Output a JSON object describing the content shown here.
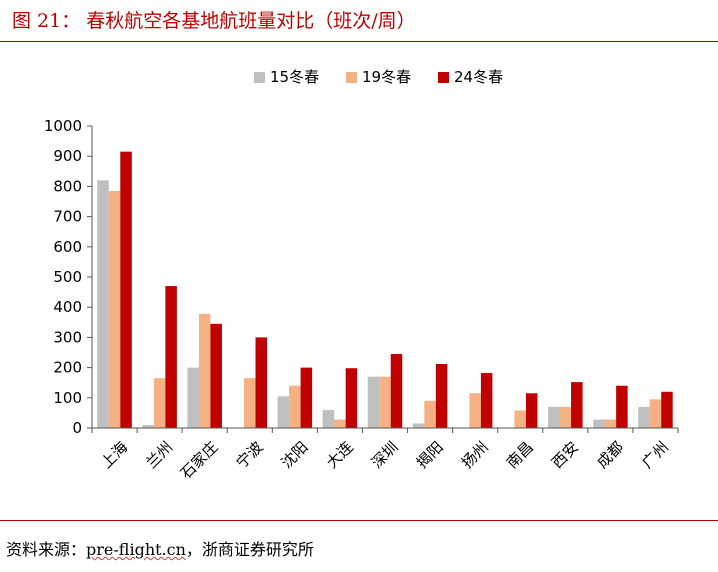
{
  "title": "图 21：  春秋航空各基地航班量对比（班次/周）",
  "footer": {
    "prefix": "资料来源：",
    "url": "pre-flight.cn",
    "suffix": "，浙商证券研究所"
  },
  "colors": {
    "accent": "#c00000",
    "s15": "#bfbfbf",
    "s19": "#f4b183",
    "s24": "#c00000"
  },
  "chart_data": {
    "type": "bar",
    "categories": [
      "上海",
      "兰州",
      "石家庄",
      "宁波",
      "沈阳",
      "大连",
      "深圳",
      "揭阳",
      "扬州",
      "南昌",
      "西安",
      "成都",
      "广州"
    ],
    "series": [
      {
        "name": "15冬春",
        "color": "#bfbfbf",
        "values": [
          820,
          10,
          200,
          0,
          105,
          60,
          170,
          15,
          0,
          0,
          70,
          28,
          70
        ]
      },
      {
        "name": "19冬春",
        "color": "#f4b183",
        "values": [
          785,
          165,
          378,
          165,
          140,
          28,
          170,
          90,
          115,
          58,
          70,
          28,
          95
        ]
      },
      {
        "name": "24冬春",
        "color": "#c00000",
        "values": [
          915,
          470,
          345,
          300,
          200,
          198,
          245,
          212,
          182,
          115,
          152,
          140,
          120
        ]
      }
    ],
    "ylim": [
      0,
      1000
    ],
    "yticks": [
      0,
      100,
      200,
      300,
      400,
      500,
      600,
      700,
      800,
      900,
      1000
    ],
    "legend_position": "top-center",
    "grid": false
  }
}
